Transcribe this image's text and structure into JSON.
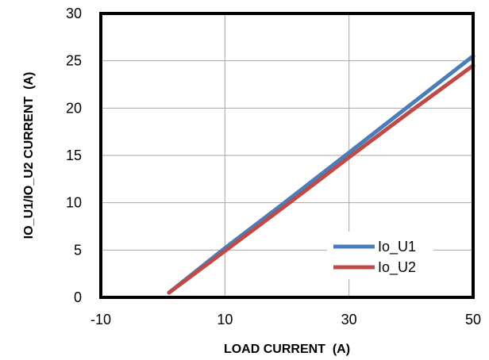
{
  "chart_data": {
    "type": "line",
    "xlabel": "LOAD CURRENT  (A)",
    "ylabel": "IO_U1/IO_U2 CURRENT  (A)",
    "xlim": [
      -10,
      50
    ],
    "ylim": [
      0,
      30
    ],
    "x_ticks": [
      "-10",
      "10",
      "30",
      "50"
    ],
    "y_ticks": [
      "0",
      "5",
      "10",
      "15",
      "20",
      "25",
      "30"
    ],
    "x_gridlines": [
      -10,
      10,
      30,
      50
    ],
    "y_gridlines": [
      0,
      5,
      10,
      15,
      20,
      25,
      30
    ],
    "grid": true,
    "legend_position": "bottom-right",
    "series": [
      {
        "name": "Io_U1",
        "color": "#4a7ebb",
        "x": [
          1,
          10,
          20,
          30,
          40,
          50
        ],
        "y": [
          0.5,
          5.2,
          10.2,
          15.3,
          20.4,
          25.5
        ]
      },
      {
        "name": "Io_U2",
        "color": "#be4b48",
        "x": [
          1,
          10,
          20,
          30,
          40,
          50
        ],
        "y": [
          0.5,
          4.9,
          9.8,
          14.8,
          19.7,
          24.5
        ]
      }
    ]
  }
}
